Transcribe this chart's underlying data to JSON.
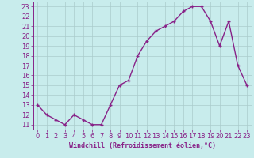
{
  "x": [
    0,
    1,
    2,
    3,
    4,
    5,
    6,
    7,
    8,
    9,
    10,
    11,
    12,
    13,
    14,
    15,
    16,
    17,
    18,
    19,
    20,
    21,
    22,
    23
  ],
  "y": [
    13,
    12,
    11.5,
    11,
    12,
    11.5,
    11,
    11,
    13,
    15,
    15.5,
    18,
    19.5,
    20.5,
    21,
    21.5,
    22.5,
    23,
    23,
    21.5,
    19,
    21.5,
    17,
    15
  ],
  "line_color": "#882288",
  "marker": "+",
  "marker_color": "#882288",
  "bg_color": "#c8ecec",
  "grid_color": "#aacccc",
  "xlabel": "Windchill (Refroidissement éolien,°C)",
  "xlabel_color": "#882288",
  "tick_color": "#882288",
  "ylim": [
    10.5,
    23.5
  ],
  "yticks": [
    11,
    12,
    13,
    14,
    15,
    16,
    17,
    18,
    19,
    20,
    21,
    22,
    23
  ],
  "xticks": [
    0,
    1,
    2,
    3,
    4,
    5,
    6,
    7,
    8,
    9,
    10,
    11,
    12,
    13,
    14,
    15,
    16,
    17,
    18,
    19,
    20,
    21,
    22,
    23
  ],
  "xlim": [
    -0.5,
    23.5
  ],
  "font_size": 6,
  "marker_size": 3.5,
  "line_width": 1.0
}
